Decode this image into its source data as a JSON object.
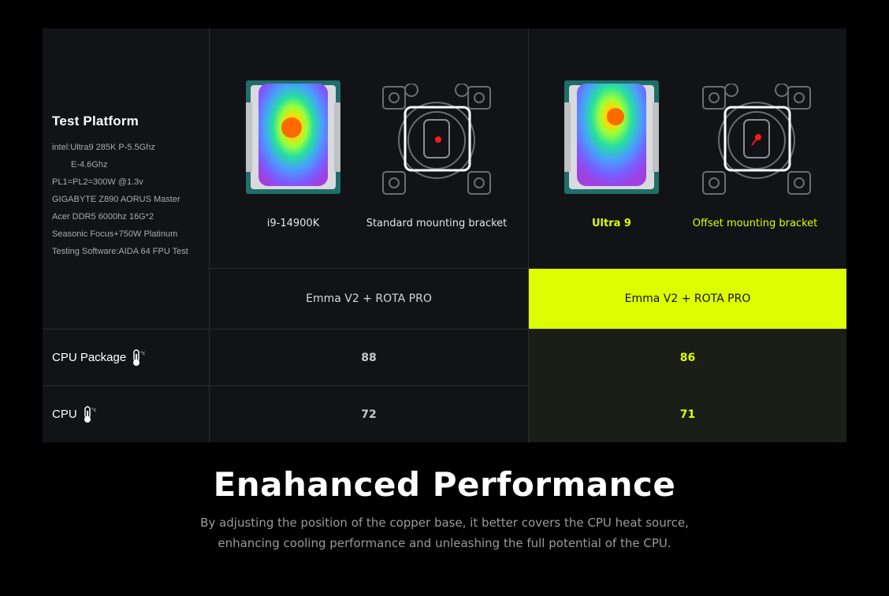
{
  "platform": {
    "title": "Test Platform",
    "specs": [
      "intel:Ultra9 285K P-5.5Ghz",
      "E-4.6Ghz",
      "PL1=PL2=300W @1.3v",
      "GIGABYTE Z890 AORUS Master",
      "Acer DDR5 6000hz 16G*2",
      "Seasonic Focus+750W Platinum",
      "Testing Software:AIDA 64 FPU Test"
    ]
  },
  "columns": [
    {
      "cpu_label": "i9-14900K",
      "bracket_label": "Standard mounting bracket",
      "combo": "Emma V2 + ROTA PRO"
    },
    {
      "cpu_label": "Ultra 9",
      "bracket_label": "Offset mounting bracket",
      "combo": "Emma V2 + ROTA PRO"
    }
  ],
  "rows": [
    {
      "label": "CPU Package",
      "values": [
        "88",
        "86"
      ]
    },
    {
      "label": "CPU",
      "values": [
        "72",
        "71"
      ]
    }
  ],
  "headline": "Enahanced Performance",
  "description": [
    "By adjusting the position of the copper base, it better covers the CPU heat source,",
    "enhancing cooling performance and unleashing the full potential of the CPU."
  ],
  "colors": {
    "accent": "#dcff00",
    "background": "#000000",
    "panel": "#111317"
  },
  "icons": {
    "thermometer": "thermometer-celsius-icon"
  }
}
